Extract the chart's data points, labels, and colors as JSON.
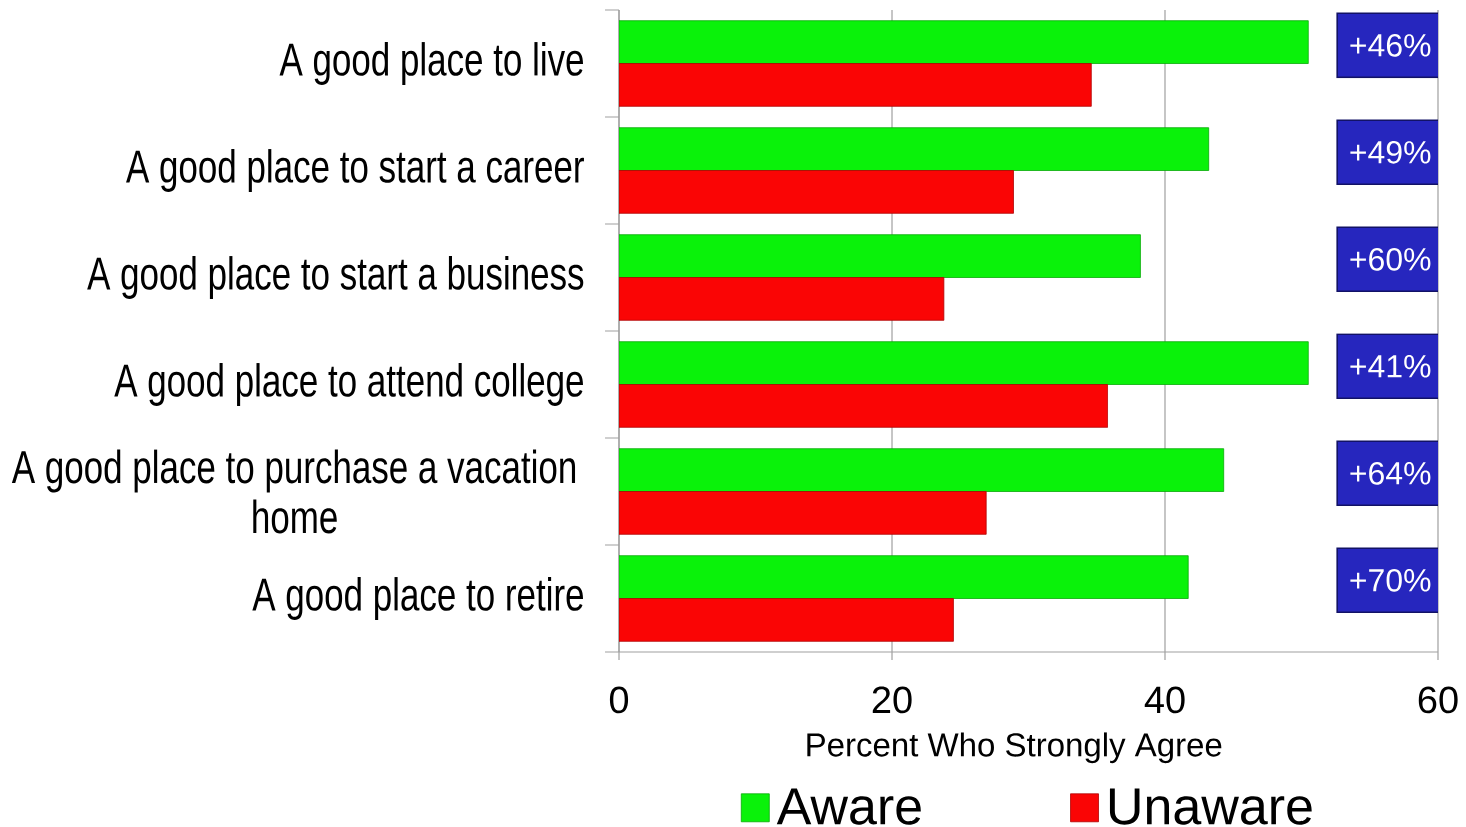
{
  "chart_data": {
    "type": "bar",
    "orientation": "horizontal",
    "categories": [
      "A good place to live",
      "A good place to start a career",
      "A good place to start a business",
      "A good place to attend college",
      "A good place to purchase a vacation home",
      "A good place to retire"
    ],
    "series": [
      {
        "name": "Aware",
        "color": "#0af20a",
        "values": [
          50.5,
          43.2,
          38.2,
          50.5,
          44.3,
          41.7
        ]
      },
      {
        "name": "Unaware",
        "color": "#fa0505",
        "values": [
          34.6,
          28.9,
          23.8,
          35.8,
          26.9,
          24.5
        ]
      }
    ],
    "xlabel": "Percent Who Strongly Agree",
    "xlim": [
      0,
      60
    ],
    "xticks": [
      0,
      20,
      40,
      60
    ],
    "grid": "x",
    "legend": "bottom",
    "annotations": [
      "+46%",
      "+49%",
      "+60%",
      "+41%",
      "+64%",
      "+70%"
    ]
  }
}
